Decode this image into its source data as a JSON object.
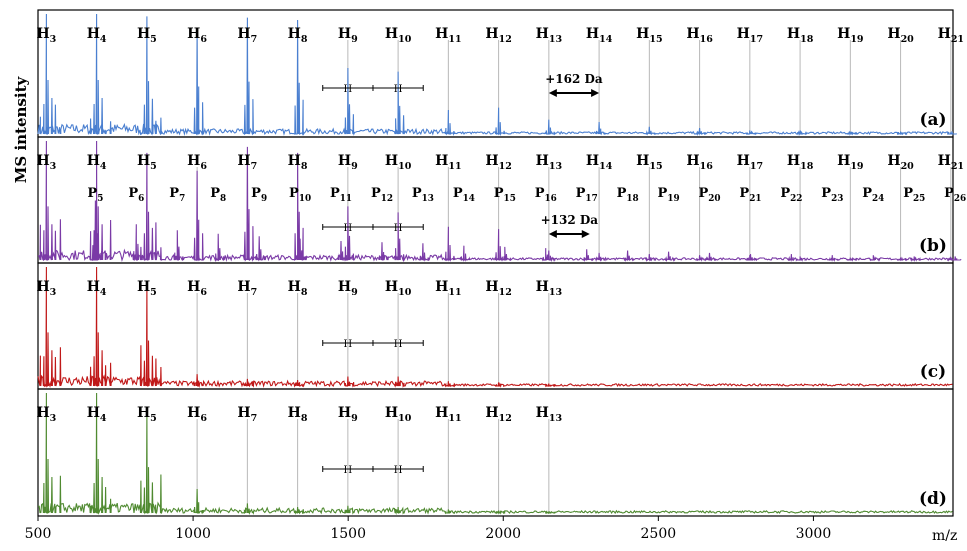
{
  "colors": {
    "a": "#4a7fd0",
    "b": "#7a3aa6",
    "c": "#c01818",
    "d": "#4f8a30",
    "guide": "#b8b8b8"
  },
  "chart_data": {
    "type": "line",
    "ylabel": "MS intensity",
    "xlabel": "m/z",
    "xlim": [
      500,
      3450
    ],
    "xticks": [
      500,
      1000,
      1500,
      2000,
      2500,
      3000
    ],
    "shared_x_axis": true,
    "legend": "none",
    "panels": [
      {
        "label": "(a)",
        "annotation": "+162 Da",
        "peaks": [
          {
            "name": "H3",
            "mz": 527,
            "rel": 1.0
          },
          {
            "name": "H4",
            "mz": 689,
            "rel": 1.0
          },
          {
            "name": "H5",
            "mz": 851,
            "rel": 0.98
          },
          {
            "name": "H6",
            "mz": 1013,
            "rel": 0.88
          },
          {
            "name": "H7",
            "mz": 1175,
            "rel": 0.97
          },
          {
            "name": "H8",
            "mz": 1337,
            "rel": 0.95
          },
          {
            "name": "H9",
            "mz": 1499,
            "rel": 0.55
          },
          {
            "name": "H10",
            "mz": 1661,
            "rel": 0.52
          },
          {
            "name": "H11",
            "mz": 1823,
            "rel": 0.2
          },
          {
            "name": "H12",
            "mz": 1985,
            "rel": 0.22
          },
          {
            "name": "H13",
            "mz": 2147,
            "rel": 0.12
          },
          {
            "name": "H14",
            "mz": 2309,
            "rel": 0.1
          },
          {
            "name": "H15",
            "mz": 2471,
            "rel": 0.06
          },
          {
            "name": "H16",
            "mz": 2633,
            "rel": 0.05
          },
          {
            "name": "H17",
            "mz": 2795,
            "rel": 0.03
          },
          {
            "name": "H18",
            "mz": 2957,
            "rel": 0.03
          },
          {
            "name": "H19",
            "mz": 3119,
            "rel": 0.02
          },
          {
            "name": "H20",
            "mz": 3281,
            "rel": 0.02
          },
          {
            "name": "H21",
            "mz": 3443,
            "rel": 0.01
          }
        ],
        "p_peaks": []
      },
      {
        "label": "(b)",
        "annotation": "+132 Da",
        "peaks": [
          {
            "name": "H3",
            "mz": 527,
            "rel": 1.0
          },
          {
            "name": "H4",
            "mz": 689,
            "rel": 1.0
          },
          {
            "name": "H5",
            "mz": 851,
            "rel": 0.9
          },
          {
            "name": "H6",
            "mz": 1013,
            "rel": 0.75
          },
          {
            "name": "H7",
            "mz": 1175,
            "rel": 0.95
          },
          {
            "name": "H8",
            "mz": 1337,
            "rel": 0.9
          },
          {
            "name": "H9",
            "mz": 1499,
            "rel": 0.45
          },
          {
            "name": "H10",
            "mz": 1661,
            "rel": 0.4
          },
          {
            "name": "H11",
            "mz": 1823,
            "rel": 0.28
          },
          {
            "name": "H12",
            "mz": 1985,
            "rel": 0.26
          },
          {
            "name": "H13",
            "mz": 2147,
            "rel": 0.08
          },
          {
            "name": "H14",
            "mz": 2309,
            "rel": 0.06
          },
          {
            "name": "H15",
            "mz": 2471,
            "rel": 0.05
          },
          {
            "name": "H16",
            "mz": 2633,
            "rel": 0.04
          },
          {
            "name": "H17",
            "mz": 2795,
            "rel": 0.04
          },
          {
            "name": "H18",
            "mz": 2957,
            "rel": 0.03
          },
          {
            "name": "H19",
            "mz": 3119,
            "rel": 0.02
          },
          {
            "name": "H20",
            "mz": 3281,
            "rel": 0.02
          },
          {
            "name": "H21",
            "mz": 3443,
            "rel": 0.02
          }
        ],
        "p_peaks": [
          {
            "name": "P5",
            "mz": 685,
            "rel": 0.5
          },
          {
            "name": "P6",
            "mz": 817,
            "rel": 0.3
          },
          {
            "name": "P7",
            "mz": 949,
            "rel": 0.25
          },
          {
            "name": "P8",
            "mz": 1081,
            "rel": 0.22
          },
          {
            "name": "P9",
            "mz": 1213,
            "rel": 0.2
          },
          {
            "name": "P10",
            "mz": 1345,
            "rel": 0.18
          },
          {
            "name": "P11",
            "mz": 1477,
            "rel": 0.16
          },
          {
            "name": "P12",
            "mz": 1609,
            "rel": 0.15
          },
          {
            "name": "P13",
            "mz": 1741,
            "rel": 0.14
          },
          {
            "name": "P14",
            "mz": 1873,
            "rel": 0.12
          },
          {
            "name": "P15",
            "mz": 2005,
            "rel": 0.11
          },
          {
            "name": "P16",
            "mz": 2137,
            "rel": 0.1
          },
          {
            "name": "P17",
            "mz": 2269,
            "rel": 0.09
          },
          {
            "name": "P18",
            "mz": 2401,
            "rel": 0.08
          },
          {
            "name": "P19",
            "mz": 2533,
            "rel": 0.07
          },
          {
            "name": "P20",
            "mz": 2665,
            "rel": 0.06
          },
          {
            "name": "P21",
            "mz": 2797,
            "rel": 0.05
          },
          {
            "name": "P22",
            "mz": 2929,
            "rel": 0.05
          },
          {
            "name": "P23",
            "mz": 3061,
            "rel": 0.04
          },
          {
            "name": "P24",
            "mz": 3193,
            "rel": 0.04
          },
          {
            "name": "P25",
            "mz": 3325,
            "rel": 0.03
          },
          {
            "name": "P26",
            "mz": 3457,
            "rel": 0.03
          }
        ]
      },
      {
        "label": "(c)",
        "annotation": "",
        "peaks": [
          {
            "name": "H3",
            "mz": 527,
            "rel": 1.0
          },
          {
            "name": "H4",
            "mz": 689,
            "rel": 1.0
          },
          {
            "name": "H5",
            "mz": 851,
            "rel": 0.85
          },
          {
            "name": "H6",
            "mz": 1013,
            "rel": 0.1
          },
          {
            "name": "H7",
            "mz": 1175,
            "rel": 0.06
          },
          {
            "name": "H8",
            "mz": 1337,
            "rel": 0.05
          },
          {
            "name": "H9",
            "mz": 1499,
            "rel": 0.08
          },
          {
            "name": "H10",
            "mz": 1661,
            "rel": 0.08
          },
          {
            "name": "H11",
            "mz": 1823,
            "rel": 0.04
          },
          {
            "name": "H12",
            "mz": 1985,
            "rel": 0.03
          },
          {
            "name": "H13",
            "mz": 2147,
            "rel": 0.02
          }
        ],
        "p_peaks": []
      },
      {
        "label": "(d)",
        "annotation": "",
        "peaks": [
          {
            "name": "H3",
            "mz": 527,
            "rel": 1.0
          },
          {
            "name": "H4",
            "mz": 689,
            "rel": 1.0
          },
          {
            "name": "H5",
            "mz": 851,
            "rel": 0.85
          },
          {
            "name": "H6",
            "mz": 1013,
            "rel": 0.2
          },
          {
            "name": "H7",
            "mz": 1175,
            "rel": 0.08
          },
          {
            "name": "H8",
            "mz": 1337,
            "rel": 0.05
          },
          {
            "name": "H9",
            "mz": 1499,
            "rel": 0.06
          },
          {
            "name": "H10",
            "mz": 1661,
            "rel": 0.05
          },
          {
            "name": "H11",
            "mz": 1823,
            "rel": 0.03
          },
          {
            "name": "H12",
            "mz": 1985,
            "rel": 0.02
          },
          {
            "name": "H13",
            "mz": 2147,
            "rel": 0.01
          }
        ],
        "p_peaks": []
      }
    ],
    "bracket_label": "H"
  }
}
